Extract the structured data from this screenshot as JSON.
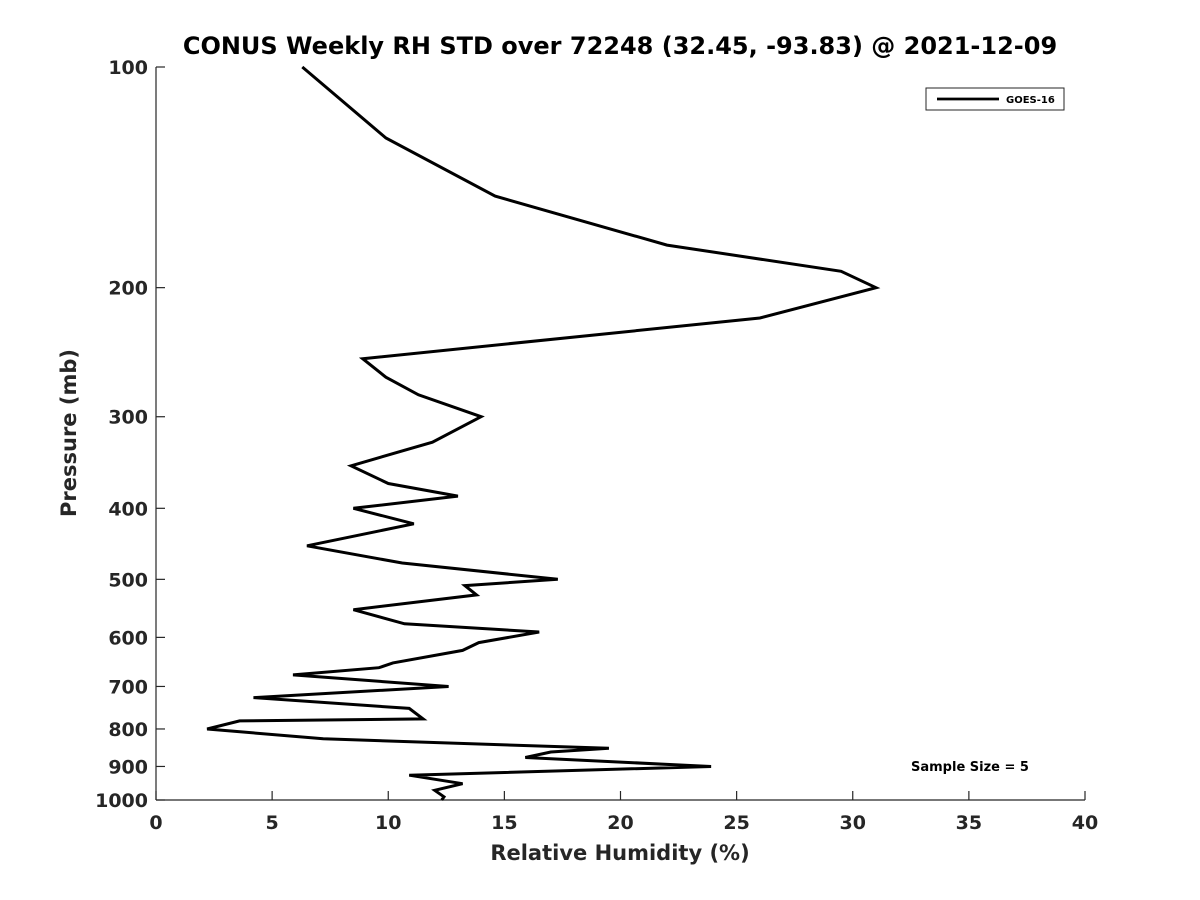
{
  "chart_data": {
    "type": "line",
    "title": "CONUS Weekly RH STD over 72248 (32.45, -93.83) @ 2021-12-09",
    "xlabel": "Relative Humidity (%)",
    "ylabel": "Pressure (mb)",
    "xlim": [
      0,
      40
    ],
    "ylim": [
      100,
      1000
    ],
    "y_scale": "log",
    "y_reversed": true,
    "x_ticks": [
      0,
      5,
      10,
      15,
      20,
      25,
      30,
      35,
      40
    ],
    "y_ticks": [
      100,
      200,
      300,
      400,
      500,
      600,
      700,
      800,
      900,
      1000
    ],
    "grid": false,
    "legend_position": "top-right",
    "annotation": "Sample Size = 5",
    "series": [
      {
        "name": "GOES-16",
        "color": "#000000",
        "points": [
          [
            6.3,
            100
          ],
          [
            9.9,
            125
          ],
          [
            14.6,
            150
          ],
          [
            22.0,
            175
          ],
          [
            29.5,
            190
          ],
          [
            31.0,
            200
          ],
          [
            26.0,
            220
          ],
          [
            8.9,
            250
          ],
          [
            9.9,
            265
          ],
          [
            11.3,
            280
          ],
          [
            14.0,
            300
          ],
          [
            11.9,
            325
          ],
          [
            8.4,
            350
          ],
          [
            10.0,
            370
          ],
          [
            13.0,
            385
          ],
          [
            8.5,
            400
          ],
          [
            11.1,
            420
          ],
          [
            6.5,
            450
          ],
          [
            10.6,
            475
          ],
          [
            17.3,
            500
          ],
          [
            13.3,
            510
          ],
          [
            13.8,
            525
          ],
          [
            8.5,
            550
          ],
          [
            10.7,
            575
          ],
          [
            16.5,
            590
          ],
          [
            13.9,
            610
          ],
          [
            13.2,
            625
          ],
          [
            10.2,
            650
          ],
          [
            9.6,
            660
          ],
          [
            5.9,
            675
          ],
          [
            12.6,
            700
          ],
          [
            4.2,
            725
          ],
          [
            10.9,
            750
          ],
          [
            11.5,
            775
          ],
          [
            3.6,
            780
          ],
          [
            2.2,
            800
          ],
          [
            7.2,
            825
          ],
          [
            19.5,
            850
          ],
          [
            17.0,
            860
          ],
          [
            15.9,
            875
          ],
          [
            23.9,
            900
          ],
          [
            10.9,
            925
          ],
          [
            13.2,
            950
          ],
          [
            12.0,
            970
          ],
          [
            12.4,
            990
          ],
          [
            12.3,
            1000
          ]
        ]
      }
    ]
  }
}
